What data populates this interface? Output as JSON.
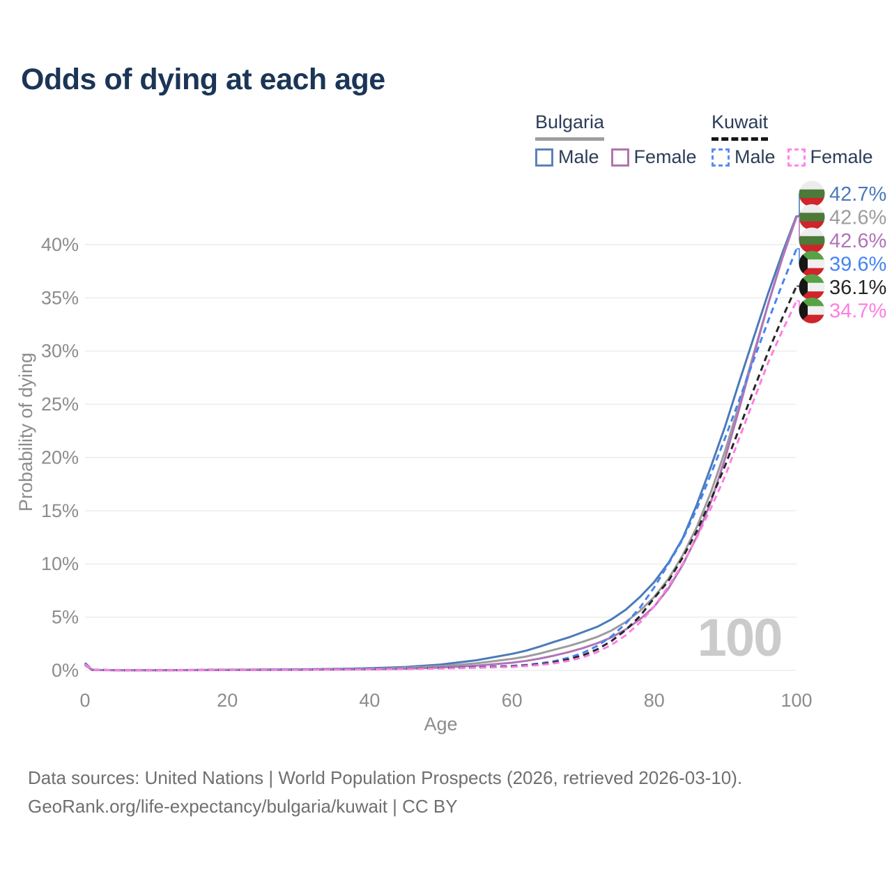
{
  "title": "Odds of dying at each age",
  "legend": {
    "groups": [
      {
        "country": "Bulgaria",
        "line_style": "solid",
        "line_color": "#9a9a9a",
        "items": [
          {
            "label": "Male",
            "color": "#5b82b8",
            "style": "solid"
          },
          {
            "label": "Female",
            "color": "#b173ad",
            "style": "solid"
          }
        ]
      },
      {
        "country": "Kuwait",
        "line_style": "dashed",
        "line_color": "#222222",
        "items": [
          {
            "label": "Male",
            "color": "#5b8bef",
            "style": "dashed"
          },
          {
            "label": "Female",
            "color": "#ff85e8",
            "style": "dashed"
          }
        ]
      }
    ]
  },
  "watermark_age": "100",
  "footer": {
    "line1": "Data sources: United Nations | World Population Prospects (2026, retrieved 2026-03-10).",
    "line2": "GeoRank.org/life-expectancy/bulgaria/kuwait | CC BY"
  },
  "chart_data": {
    "type": "line",
    "title": "Odds of dying at each age",
    "xlabel": "Age",
    "ylabel": "Probability of dying",
    "x_ticks": [
      0,
      20,
      40,
      60,
      80,
      100
    ],
    "y_ticks_percent": [
      0,
      5,
      10,
      15,
      20,
      25,
      30,
      35,
      40
    ],
    "xlim": [
      0,
      100
    ],
    "ylim_percent": [
      0,
      44
    ],
    "grid": "horizontal",
    "legend_position": "top-right",
    "ages": [
      0,
      1,
      5,
      10,
      15,
      20,
      25,
      30,
      35,
      40,
      45,
      50,
      55,
      60,
      62,
      64,
      66,
      68,
      70,
      72,
      74,
      76,
      78,
      80,
      82,
      84,
      86,
      88,
      90,
      92,
      94,
      96,
      98,
      100
    ],
    "series": [
      {
        "name": "Bulgaria Male",
        "country": "Bulgaria",
        "sex": "male",
        "flag": "bulgaria",
        "line": "solid",
        "color": "#4a7ab8",
        "end_label": "42.7%",
        "end_value_percent": 42.7,
        "values_percent": [
          0.6,
          0.05,
          0.02,
          0.02,
          0.04,
          0.06,
          0.08,
          0.1,
          0.14,
          0.2,
          0.32,
          0.55,
          0.95,
          1.55,
          1.85,
          2.25,
          2.7,
          3.1,
          3.6,
          4.1,
          4.8,
          5.7,
          6.9,
          8.3,
          10.1,
          12.4,
          15.6,
          19.2,
          23.0,
          27.2,
          31.3,
          35.4,
          39.2,
          42.7
        ]
      },
      {
        "name": "Bulgaria",
        "country": "Bulgaria",
        "sex": "all",
        "flag": "bulgaria",
        "line": "solid",
        "color": "#9c9c9c",
        "end_label": "42.6%",
        "end_value_percent": 42.6,
        "values_percent": [
          0.55,
          0.04,
          0.015,
          0.015,
          0.03,
          0.045,
          0.06,
          0.08,
          0.11,
          0.15,
          0.24,
          0.4,
          0.66,
          1.08,
          1.3,
          1.6,
          1.95,
          2.3,
          2.7,
          3.15,
          3.75,
          4.55,
          5.6,
          6.9,
          8.6,
          10.8,
          13.5,
          16.8,
          20.7,
          25.1,
          29.8,
          34.4,
          38.8,
          42.6
        ]
      },
      {
        "name": "Bulgaria Female",
        "country": "Bulgaria",
        "sex": "female",
        "flag": "bulgaria",
        "line": "solid",
        "color": "#b173b8",
        "end_label": "42.6%",
        "end_value_percent": 42.6,
        "values_percent": [
          0.5,
          0.035,
          0.012,
          0.012,
          0.02,
          0.03,
          0.04,
          0.05,
          0.07,
          0.1,
          0.16,
          0.27,
          0.44,
          0.72,
          0.9,
          1.12,
          1.4,
          1.72,
          2.1,
          2.55,
          3.1,
          3.85,
          4.8,
          6.0,
          7.7,
          9.9,
          12.6,
          15.9,
          20.0,
          24.7,
          29.6,
          34.4,
          38.7,
          42.6
        ]
      },
      {
        "name": "Kuwait Male",
        "country": "Kuwait",
        "sex": "male",
        "flag": "kuwait",
        "line": "dashed",
        "color": "#4584f0",
        "end_label": "39.6%",
        "end_value_percent": 39.6,
        "values_percent": [
          0.7,
          0.06,
          0.025,
          0.02,
          0.04,
          0.06,
          0.07,
          0.08,
          0.1,
          0.13,
          0.17,
          0.22,
          0.3,
          0.42,
          0.52,
          0.66,
          0.88,
          1.2,
          1.65,
          2.3,
          3.2,
          4.4,
          5.9,
          7.8,
          10.0,
          12.3,
          15.2,
          18.5,
          21.9,
          25.5,
          29.2,
          32.8,
          36.3,
          39.6
        ]
      },
      {
        "name": "Kuwait",
        "country": "Kuwait",
        "sex": "all",
        "flag": "kuwait",
        "line": "dashed",
        "color": "#262626",
        "end_label": "36.1%",
        "end_value_percent": 36.1,
        "values_percent": [
          0.65,
          0.055,
          0.022,
          0.018,
          0.035,
          0.05,
          0.06,
          0.07,
          0.085,
          0.11,
          0.15,
          0.2,
          0.27,
          0.37,
          0.46,
          0.58,
          0.77,
          1.04,
          1.42,
          1.98,
          2.76,
          3.8,
          5.1,
          6.8,
          8.4,
          10.6,
          13.1,
          16.1,
          19.3,
          22.8,
          26.4,
          29.9,
          33.1,
          36.1
        ]
      },
      {
        "name": "Kuwait Female",
        "country": "Kuwait",
        "sex": "female",
        "flag": "kuwait",
        "line": "dashed",
        "color": "#ff7de2",
        "end_label": "34.7%",
        "end_value_percent": 34.7,
        "values_percent": [
          0.6,
          0.05,
          0.02,
          0.015,
          0.03,
          0.04,
          0.05,
          0.06,
          0.075,
          0.1,
          0.13,
          0.18,
          0.24,
          0.33,
          0.41,
          0.51,
          0.67,
          0.9,
          1.24,
          1.72,
          2.4,
          3.3,
          4.5,
          6.0,
          7.9,
          10.0,
          12.5,
          15.3,
          18.3,
          21.9,
          25.4,
          28.9,
          31.9,
          34.7
        ]
      }
    ],
    "colors": {
      "grid": "#e9e9e9",
      "axis_text": "#8c8c8c",
      "watermark": "#cbcbcb",
      "flag_bulgaria": [
        "#ececec",
        "#4c7a38",
        "#d0242b"
      ],
      "flag_kuwait": [
        "#57a246",
        "#f0f0f0",
        "#d0242b",
        "#161616"
      ]
    }
  }
}
